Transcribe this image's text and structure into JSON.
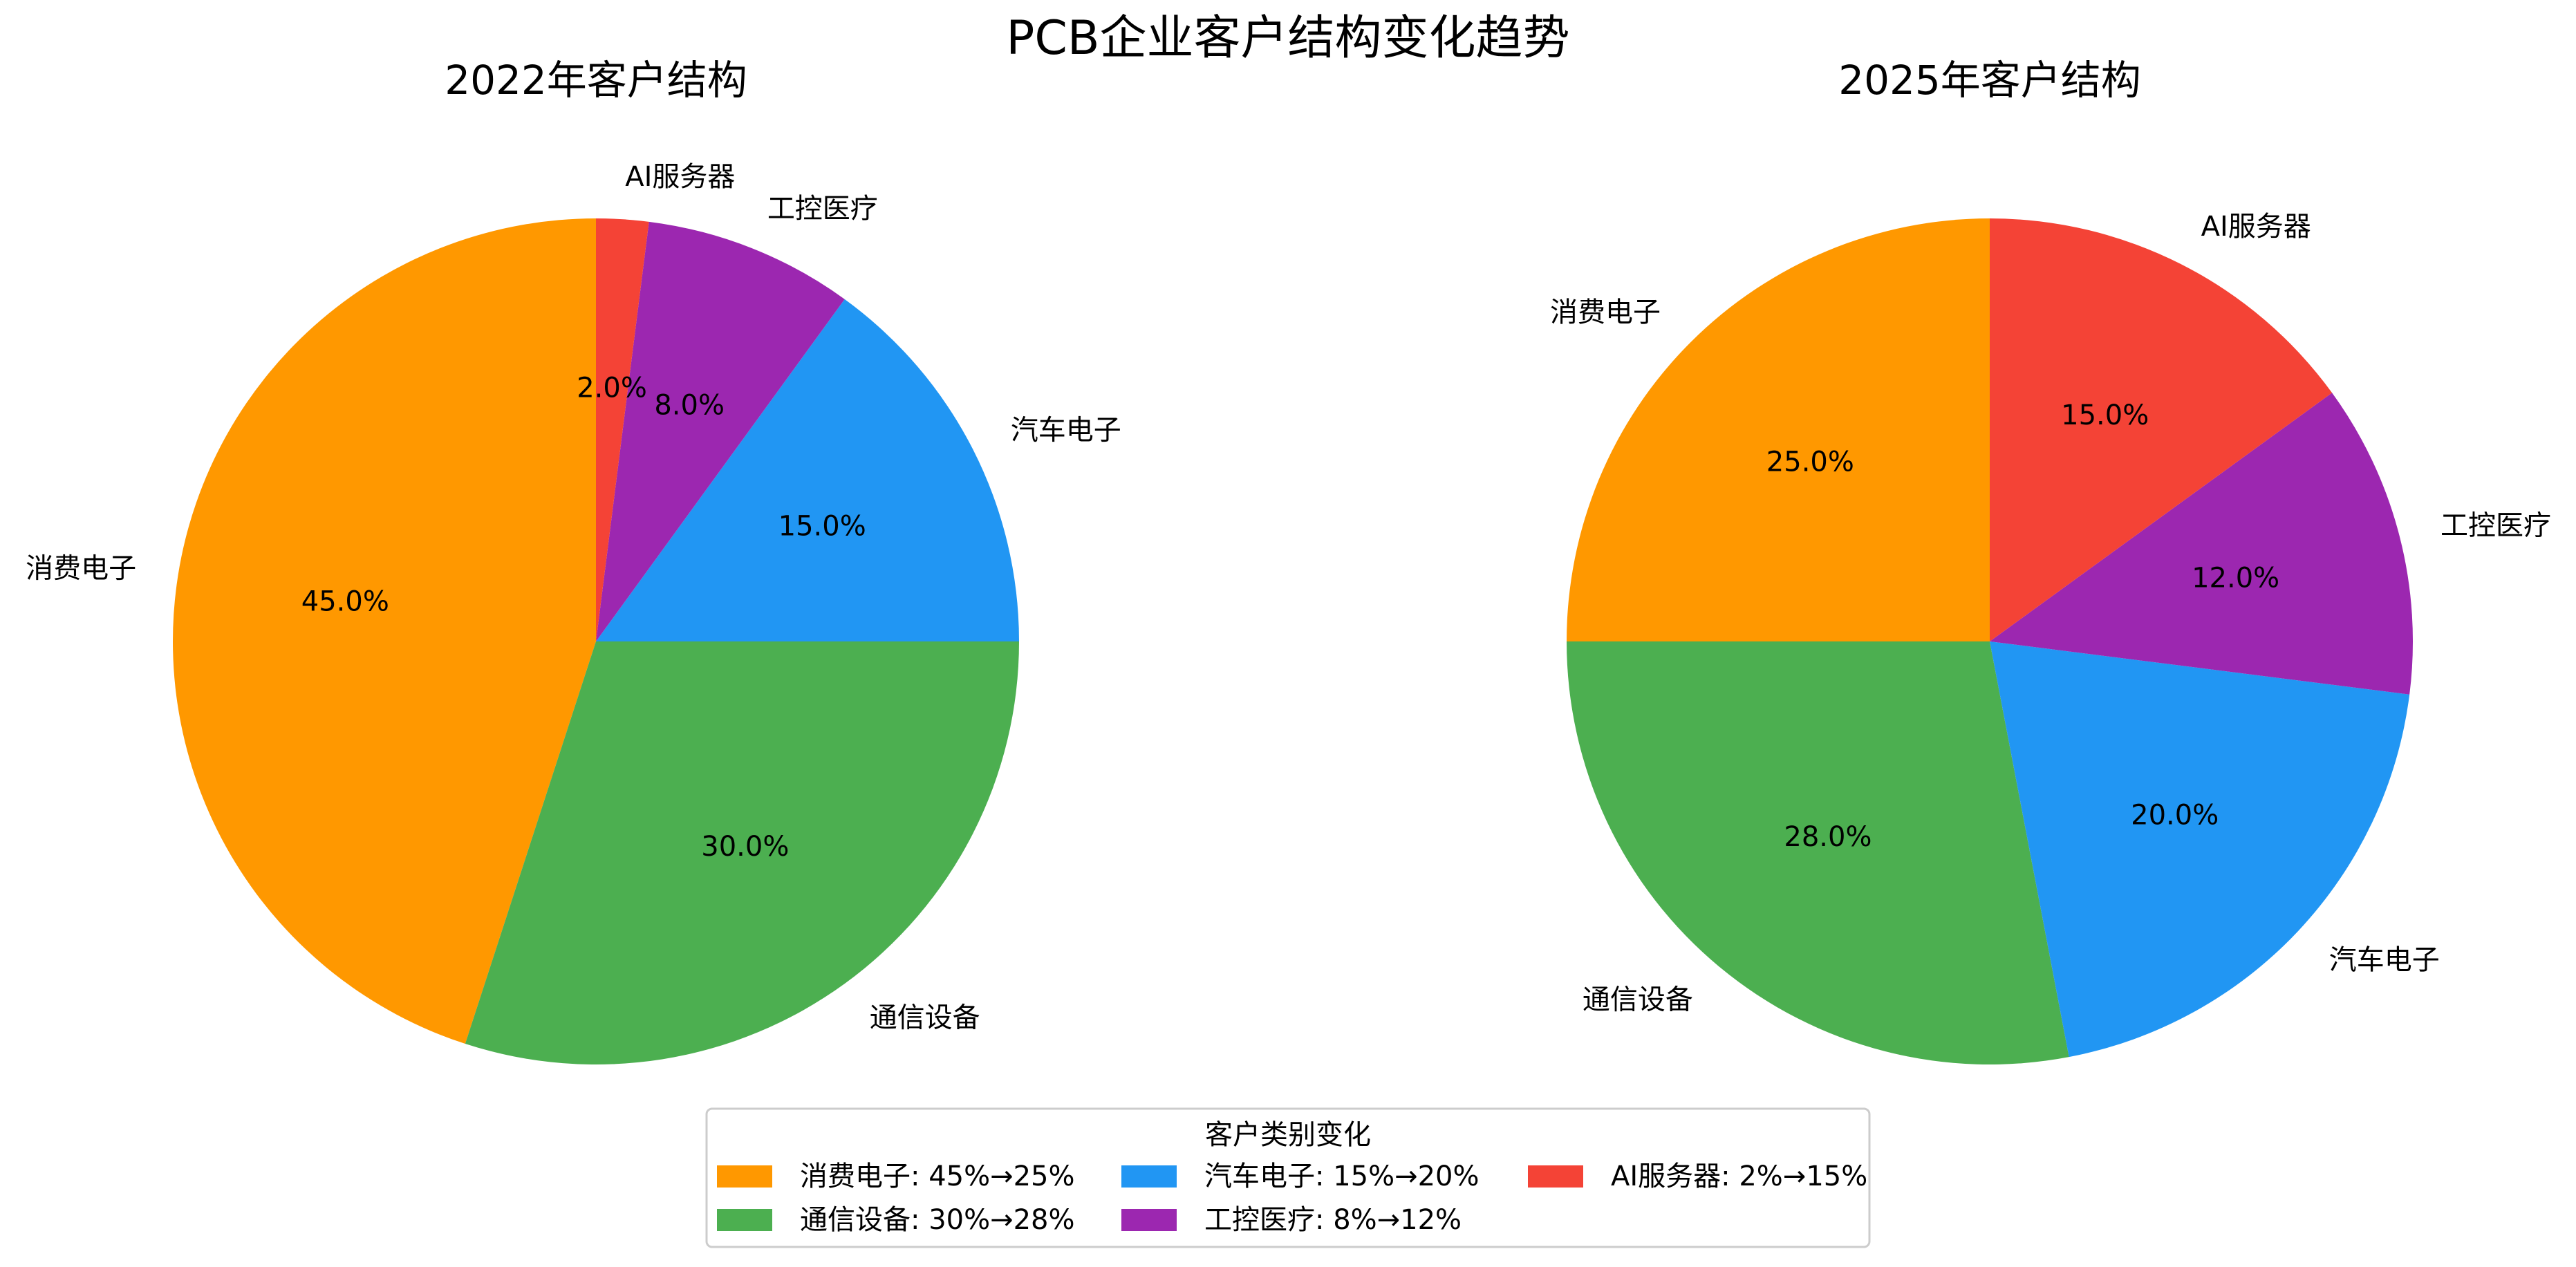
{
  "title": "PCB企业客户结构变化趋势",
  "colors": {
    "消费电子": "#FF9800",
    "通信设备": "#4CAF50",
    "汽车电子": "#2196F3",
    "工控医疗": "#9C27B0",
    "AI服务器": "#F44336"
  },
  "chart_data": [
    {
      "type": "pie",
      "title": "2022年客户结构",
      "slices": [
        {
          "label": "消费电子",
          "value": 45.0,
          "pct_text": "45.0%"
        },
        {
          "label": "通信设备",
          "value": 30.0,
          "pct_text": "30.0%"
        },
        {
          "label": "汽车电子",
          "value": 15.0,
          "pct_text": "15.0%"
        },
        {
          "label": "工控医疗",
          "value": 8.0,
          "pct_text": "8.0%"
        },
        {
          "label": "AI服务器",
          "value": 2.0,
          "pct_text": "2.0%"
        }
      ],
      "start_angle_deg": 90,
      "direction": "counterclockwise"
    },
    {
      "type": "pie",
      "title": "2025年客户结构",
      "slices": [
        {
          "label": "消费电子",
          "value": 25.0,
          "pct_text": "25.0%"
        },
        {
          "label": "通信设备",
          "value": 28.0,
          "pct_text": "28.0%"
        },
        {
          "label": "汽车电子",
          "value": 20.0,
          "pct_text": "20.0%"
        },
        {
          "label": "工控医疗",
          "value": 12.0,
          "pct_text": "12.0%"
        },
        {
          "label": "AI服务器",
          "value": 15.0,
          "pct_text": "15.0%"
        }
      ],
      "start_angle_deg": 90,
      "direction": "counterclockwise"
    }
  ],
  "legend": {
    "title": "客户类别变化",
    "placement": "bottom-center",
    "items": [
      {
        "key": "消费电子",
        "text": "消费电子: 45%→25%"
      },
      {
        "key": "通信设备",
        "text": "通信设备: 30%→28%"
      },
      {
        "key": "汽车电子",
        "text": "汽车电子: 15%→20%"
      },
      {
        "key": "工控医疗",
        "text": "工控医疗: 8%→12%"
      },
      {
        "key": "AI服务器",
        "text": "AI服务器: 2%→15%"
      }
    ]
  }
}
